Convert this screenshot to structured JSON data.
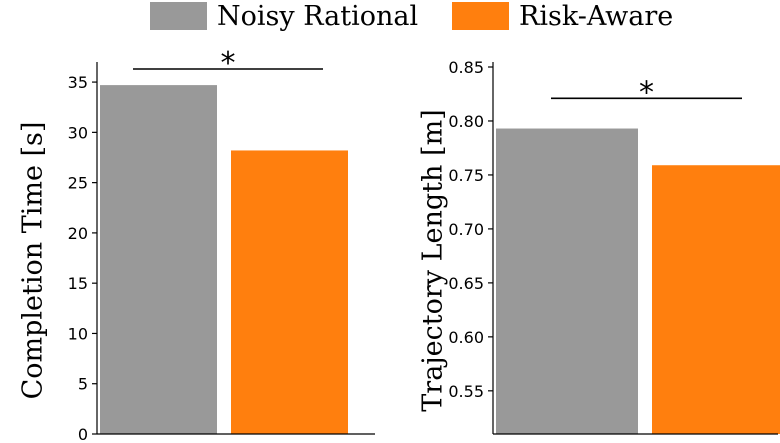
{
  "legend": {
    "items": [
      {
        "label": "Noisy Rational",
        "color": "#999999"
      },
      {
        "label": "Risk-Aware",
        "color": "#ff7f0e"
      }
    ]
  },
  "chart_data": [
    {
      "type": "bar",
      "title": "",
      "xlabel": "",
      "ylabel": "Completion Time [s]",
      "categories": [
        "Noisy Rational",
        "Risk-Aware"
      ],
      "values": [
        34.7,
        28.2
      ],
      "colors": [
        "#999999",
        "#ff7f0e"
      ],
      "ylim": [
        0,
        36.5
      ],
      "yticks": [
        0,
        5,
        10,
        15,
        20,
        25,
        30,
        35
      ],
      "ytick_labels": [
        "0",
        "5",
        "10",
        "15",
        "20",
        "25",
        "30",
        "35"
      ],
      "significance": {
        "label": "*",
        "y": 36.3
      },
      "grid": false
    },
    {
      "type": "bar",
      "title": "",
      "xlabel": "",
      "ylabel": "Trajectory Length [m]",
      "categories": [
        "Noisy Rational",
        "Risk-Aware"
      ],
      "values": [
        0.793,
        0.759
      ],
      "colors": [
        "#999999",
        "#ff7f0e"
      ],
      "ylim": [
        0.51,
        0.85
      ],
      "yticks": [
        0.55,
        0.6,
        0.65,
        0.7,
        0.75,
        0.8,
        0.85
      ],
      "ytick_labels": [
        "0.55",
        "0.60",
        "0.65",
        "0.70",
        "0.75",
        "0.80",
        "0.85"
      ],
      "significance": {
        "label": "*",
        "y": 0.821
      },
      "grid": false
    }
  ]
}
